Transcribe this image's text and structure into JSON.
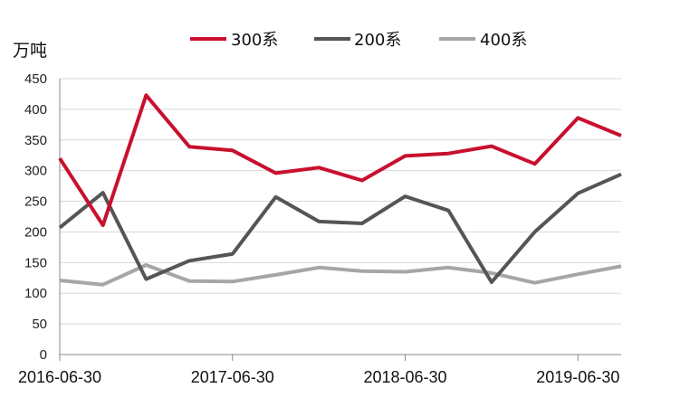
{
  "chart_data": {
    "type": "line",
    "ylabel": "万吨",
    "ylim": [
      0,
      450
    ],
    "yticks": [
      0,
      50,
      100,
      150,
      200,
      250,
      300,
      350,
      400,
      450
    ],
    "xtick_labels": [
      "2016-06-30",
      "2017-06-30",
      "2018-06-30",
      "2019-06-30"
    ],
    "x": [
      "2016-06-30",
      "2016-09-30",
      "2016-12-31",
      "2017-03-31",
      "2017-06-30",
      "2017-09-30",
      "2017-12-31",
      "2018-03-31",
      "2018-06-30",
      "2018-09-30",
      "2018-12-31",
      "2019-03-31",
      "2019-06-30",
      "2019-09-30"
    ],
    "grid": true,
    "legend_position": "top",
    "series": [
      {
        "name": "300系",
        "color": "#c8102e",
        "values": [
          320,
          211,
          423,
          339,
          333,
          296,
          305,
          284,
          324,
          328,
          340,
          311,
          386,
          357
        ]
      },
      {
        "name": "200系",
        "color": "#555555",
        "values": [
          207,
          264,
          123,
          153,
          164,
          257,
          217,
          214,
          258,
          235,
          118,
          200,
          263,
          294
        ]
      },
      {
        "name": "400系",
        "color": "#a6a6a6",
        "values": [
          121,
          114,
          146,
          120,
          119,
          130,
          142,
          136,
          135,
          142,
          133,
          117,
          131,
          144
        ]
      }
    ]
  }
}
